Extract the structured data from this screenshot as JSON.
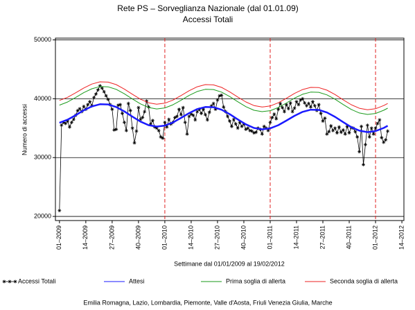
{
  "chart_data": {
    "type": "line",
    "title": "Rete PS – Sorveglianza Nazionale (dal 01.01.09)",
    "subtitle": "Accessi Totali",
    "x_label": "Settimane dal 01/01/2009 al 19/02/2012",
    "y_label": "Numero di accessi",
    "footnote": "Emilia Romagna, Lazio, Lombardia, Piemonte, Valle d'Aosta, Friuli Venezia Giulia, Marche",
    "xlim": [
      -2,
      170
    ],
    "ylim": [
      19300,
      50300
    ],
    "yticks": [
      20000,
      30000,
      40000,
      50000
    ],
    "xticks": [
      {
        "value": 0,
        "label": "01–2009"
      },
      {
        "value": 13,
        "label": "14–2009"
      },
      {
        "value": 26,
        "label": "27–2009"
      },
      {
        "value": 39,
        "label": "40–2009"
      },
      {
        "value": 52,
        "label": "01–2010"
      },
      {
        "value": 65,
        "label": "14–2010"
      },
      {
        "value": 78,
        "label": "27–2010"
      },
      {
        "value": 91,
        "label": "40–2010"
      },
      {
        "value": 104,
        "label": "01–2011"
      },
      {
        "value": 117,
        "label": "14–2011"
      },
      {
        "value": 130,
        "label": "27–2011"
      },
      {
        "value": 143,
        "label": "40–2011"
      },
      {
        "value": 156,
        "label": "01–2012"
      },
      {
        "value": 169,
        "label": "14–2012"
      }
    ],
    "grid": true,
    "vlines": [
      52,
      104,
      156
    ],
    "vline_color": "#e02020",
    "series": [
      {
        "name": "Accessi Totali",
        "color": "#000000",
        "marker": "asterisk",
        "x": [
          0,
          1,
          2,
          3,
          4,
          5,
          6,
          7,
          8,
          9,
          10,
          11,
          12,
          13,
          14,
          15,
          16,
          17,
          18,
          19,
          20,
          21,
          22,
          23,
          24,
          25,
          26,
          27,
          28,
          29,
          30,
          31,
          32,
          33,
          34,
          35,
          36,
          37,
          38,
          39,
          40,
          41,
          42,
          43,
          44,
          45,
          46,
          47,
          48,
          49,
          50,
          51,
          52,
          53,
          54,
          55,
          56,
          57,
          58,
          59,
          60,
          61,
          62,
          63,
          64,
          65,
          66,
          67,
          68,
          69,
          70,
          71,
          72,
          73,
          74,
          75,
          76,
          77,
          78,
          79,
          80,
          81,
          82,
          83,
          84,
          85,
          86,
          87,
          88,
          89,
          90,
          91,
          92,
          93,
          94,
          95,
          96,
          97,
          98,
          99,
          100,
          101,
          102,
          103,
          104,
          105,
          106,
          107,
          108,
          109,
          110,
          111,
          112,
          113,
          114,
          115,
          116,
          117,
          118,
          119,
          120,
          121,
          122,
          123,
          124,
          125,
          126,
          127,
          128,
          129,
          130,
          131,
          132,
          133,
          134,
          135,
          136,
          137,
          138,
          139,
          140,
          141,
          142,
          143,
          144,
          145,
          146,
          147,
          148,
          149,
          150,
          151,
          152,
          153,
          154,
          155,
          156,
          157,
          158,
          159,
          160,
          161,
          162
        ],
        "values": [
          21000,
          35500,
          36000,
          35800,
          36200,
          35200,
          36000,
          36500,
          37200,
          38000,
          38300,
          37800,
          38700,
          38200,
          39000,
          39500,
          38800,
          40200,
          40800,
          41500,
          42200,
          41800,
          41200,
          40500,
          39900,
          39000,
          38200,
          34700,
          34800,
          38900,
          39000,
          37500,
          36000,
          34600,
          39200,
          38000,
          35000,
          32500,
          34500,
          38500,
          36500,
          36800,
          37800,
          39600,
          38600,
          35700,
          36300,
          35200,
          35000,
          34600,
          33500,
          33300,
          36000,
          35200,
          36500,
          35700,
          36000,
          36800,
          37000,
          38200,
          37300,
          38500,
          36000,
          34000,
          37000,
          37400,
          37200,
          36400,
          37800,
          38200,
          37500,
          38200,
          37300,
          36400,
          37700,
          38800,
          39200,
          38200,
          39800,
          40500,
          40600,
          38600,
          37800,
          37000,
          36200,
          35300,
          36500,
          35700,
          35000,
          36000,
          35300,
          35700,
          34800,
          35000,
          34600,
          34500,
          34200,
          34300,
          35000,
          34800,
          34000,
          35300,
          35000,
          34600,
          36000,
          36800,
          37400,
          36600,
          38200,
          39200,
          38500,
          37800,
          39000,
          38300,
          39300,
          37800,
          38400,
          39500,
          39000,
          39800,
          40000,
          39300,
          38800,
          39200,
          38600,
          39500,
          38800,
          38000,
          39000,
          37500,
          36200,
          36700,
          34000,
          34400,
          35400,
          34600,
          35000,
          34200,
          35200,
          34300,
          34700,
          34000,
          35300,
          34200,
          35100,
          35000,
          34400,
          33500,
          31000,
          35300,
          28800,
          32200,
          35500,
          33500,
          35000,
          34000,
          35000,
          35800,
          36400,
          33400,
          32600,
          33000,
          34500
        ]
      },
      {
        "name": "Attesi",
        "color": "#1a1aff",
        "width": 2.5,
        "x": [
          0,
          4,
          8,
          12,
          16,
          20,
          24,
          28,
          32,
          36,
          40,
          44,
          48,
          52,
          56,
          60,
          64,
          68,
          72,
          76,
          80,
          84,
          88,
          92,
          96,
          100,
          104,
          108,
          112,
          116,
          120,
          124,
          128,
          132,
          136,
          140,
          144,
          148,
          152,
          156,
          160,
          162
        ],
        "values": [
          35910,
          36440,
          37210,
          38030,
          38700,
          39070,
          39030,
          38600,
          37850,
          36960,
          36120,
          35510,
          35270,
          35440,
          35970,
          36740,
          37560,
          38240,
          38600,
          38560,
          38130,
          37380,
          36490,
          35650,
          35040,
          34800,
          34970,
          35510,
          36280,
          37100,
          37770,
          38130,
          38100,
          37660,
          36920,
          36020,
          35180,
          34580,
          34330,
          34500,
          35040,
          35400
        ]
      },
      {
        "name": "Prima soglia di allerta",
        "color": "#1a9a1a",
        "width": 1,
        "x": [
          0,
          4,
          8,
          12,
          16,
          20,
          24,
          28,
          32,
          36,
          40,
          44,
          48,
          52,
          56,
          60,
          64,
          68,
          72,
          76,
          80,
          84,
          88,
          92,
          96,
          100,
          104,
          108,
          112,
          116,
          120,
          124,
          128,
          132,
          136,
          140,
          144,
          148,
          152,
          156,
          160,
          162
        ],
        "values": [
          38910,
          39440,
          40210,
          41030,
          41700,
          42070,
          42030,
          41600,
          40850,
          39960,
          39120,
          38510,
          38270,
          38440,
          38970,
          39740,
          40560,
          41240,
          41600,
          41560,
          41130,
          40380,
          39490,
          38650,
          38040,
          37800,
          37970,
          38510,
          39280,
          40100,
          40770,
          41130,
          41100,
          40660,
          39920,
          39020,
          38180,
          37580,
          37330,
          37500,
          38040,
          38400
        ]
      },
      {
        "name": "Seconda soglia di allerta",
        "color": "#ee2222",
        "width": 1,
        "x": [
          0,
          4,
          8,
          12,
          16,
          20,
          24,
          28,
          32,
          36,
          40,
          44,
          48,
          52,
          56,
          60,
          64,
          68,
          72,
          76,
          80,
          84,
          88,
          92,
          96,
          100,
          104,
          108,
          112,
          116,
          120,
          124,
          128,
          132,
          136,
          140,
          144,
          148,
          152,
          156,
          160,
          162
        ],
        "values": [
          39710,
          40240,
          41010,
          41830,
          42500,
          42870,
          42830,
          42400,
          41650,
          40760,
          39920,
          39310,
          39070,
          39240,
          39770,
          40540,
          41360,
          42040,
          42400,
          42360,
          41930,
          41180,
          40290,
          39450,
          38840,
          38600,
          38770,
          39310,
          40080,
          40900,
          41570,
          41930,
          41900,
          41460,
          40720,
          39820,
          38980,
          38380,
          38130,
          38300,
          38840,
          39200
        ]
      }
    ]
  }
}
